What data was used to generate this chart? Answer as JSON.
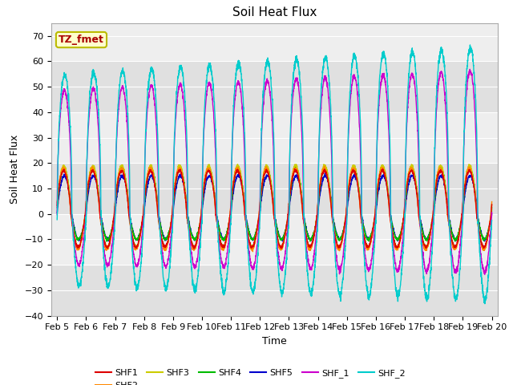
{
  "title": "Soil Heat Flux",
  "ylabel": "Soil Heat Flux",
  "xlabel": "Time",
  "ylim": [
    -40,
    75
  ],
  "xlim": [
    4.8,
    20.2
  ],
  "xtick_labels": [
    "Feb 5",
    "Feb 6",
    "Feb 7",
    "Feb 8",
    "Feb 9",
    "Feb 10",
    "Feb 11",
    "Feb 12",
    "Feb 13",
    "Feb 14",
    "Feb 15",
    "Feb 16",
    "Feb 17",
    "Feb 18",
    "Feb 19",
    "Feb 20"
  ],
  "xtick_positions": [
    5,
    6,
    7,
    8,
    9,
    10,
    11,
    12,
    13,
    14,
    15,
    16,
    17,
    18,
    19,
    20
  ],
  "series_colors": {
    "SHF1": "#dd0000",
    "SHF2": "#ff8800",
    "SHF3": "#cccc00",
    "SHF4": "#00bb00",
    "SHF5": "#0000cc",
    "SHF_1": "#cc00cc",
    "SHF_2": "#00cccc"
  },
  "annotation_text": "TZ_fmet",
  "annotation_color": "#aa0000",
  "annotation_bg": "#ffffcc",
  "annotation_border": "#bbbb00",
  "plot_bg": "#eeeeee",
  "grid_color": "#ffffff",
  "title_fontsize": 11,
  "axis_fontsize": 9,
  "tick_fontsize": 8,
  "legend_fontsize": 8
}
